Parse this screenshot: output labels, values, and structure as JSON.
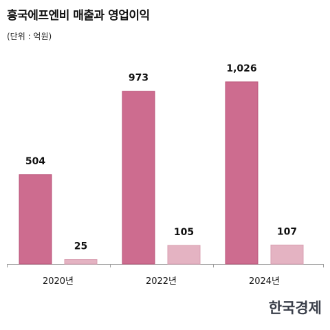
{
  "header": {
    "title": "흥국에프엔비 매출과 영업이익",
    "unit": "(단위 : 억원)"
  },
  "logo_text": "한국경제",
  "colors": {
    "revenue": "#cd6c8f",
    "revenue_stroke": "#b9557a",
    "operating_profit": "#e4b3c2",
    "operating_profit_stroke": "#d99fb1",
    "axis": "#9a9a9a"
  },
  "chart_data": {
    "type": "bar",
    "categories": [
      "2020년",
      "2022년",
      "2024년"
    ],
    "series": [
      {
        "values": [
          504,
          973,
          1026
        ],
        "labels": [
          "504",
          "973",
          "1,026"
        ]
      },
      {
        "values": [
          25,
          105,
          107
        ],
        "labels": [
          "25",
          "105",
          "107"
        ]
      }
    ],
    "ylim": [
      0,
      1026
    ],
    "grid": false
  }
}
